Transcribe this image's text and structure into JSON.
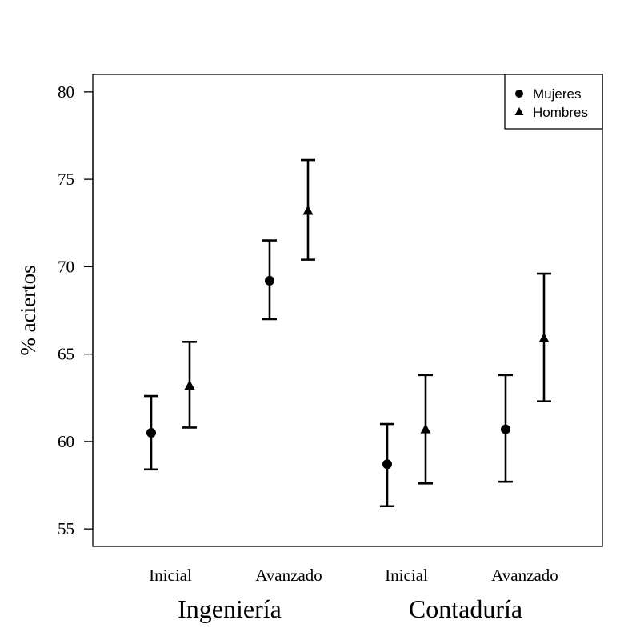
{
  "chart_data": {
    "type": "scatter",
    "ylabel": "% aciertos",
    "ylim": [
      54,
      81
    ],
    "yticks": [
      55,
      60,
      65,
      70,
      75,
      80
    ],
    "grid": false,
    "legend_position": "top-right",
    "groups": [
      {
        "label": "Ingeniería",
        "levels": [
          "Inicial",
          "Avanzado"
        ]
      },
      {
        "label": "Contaduría",
        "levels": [
          "Inicial",
          "Avanzado"
        ]
      }
    ],
    "series": [
      {
        "name": "Mujeres",
        "marker": "circle",
        "points": [
          {
            "group": "Ingeniería",
            "level": "Inicial",
            "mean": 60.5,
            "lower": 58.4,
            "upper": 62.6
          },
          {
            "group": "Ingeniería",
            "level": "Avanzado",
            "mean": 69.2,
            "lower": 67.0,
            "upper": 71.5
          },
          {
            "group": "Contaduría",
            "level": "Inicial",
            "mean": 58.7,
            "lower": 56.3,
            "upper": 61.0
          },
          {
            "group": "Contaduría",
            "level": "Avanzado",
            "mean": 60.7,
            "lower": 57.7,
            "upper": 63.8
          }
        ]
      },
      {
        "name": "Hombres",
        "marker": "triangle",
        "points": [
          {
            "group": "Ingeniería",
            "level": "Inicial",
            "mean": 63.2,
            "lower": 60.8,
            "upper": 65.7
          },
          {
            "group": "Ingeniería",
            "level": "Avanzado",
            "mean": 73.2,
            "lower": 70.4,
            "upper": 76.1
          },
          {
            "group": "Contaduría",
            "level": "Inicial",
            "mean": 60.7,
            "lower": 57.6,
            "upper": 63.8
          },
          {
            "group": "Contaduría",
            "level": "Avanzado",
            "mean": 65.9,
            "lower": 62.3,
            "upper": 69.6
          }
        ]
      }
    ]
  }
}
